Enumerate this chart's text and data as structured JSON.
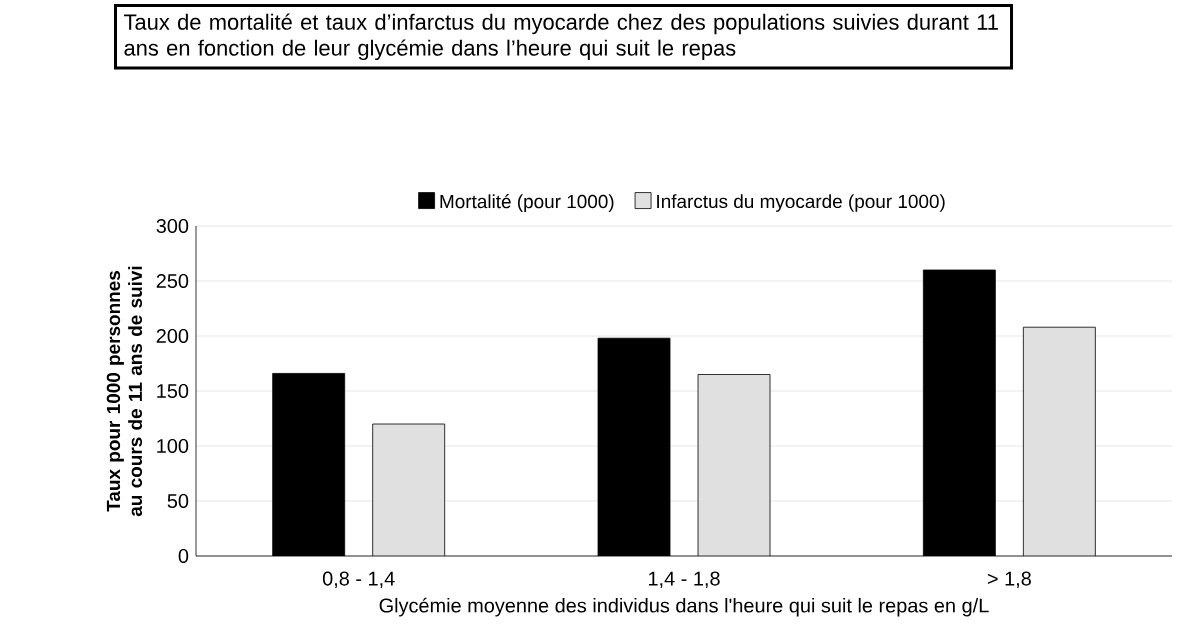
{
  "chart_data": {
    "type": "bar",
    "title": "Taux de mortalité et taux d’infarctus du myocarde chez des populations suivies durant 11 ans en fonction de leur glycémie dans l’heure qui suit le repas",
    "xlabel": "Glycémie moyenne des individus dans l'heure qui suit le repas en g/L",
    "ylabel": "Taux pour 1000 personnes au cours de 11 ans de suivi",
    "categories": [
      "0,8 - 1,4",
      "1,4 - 1,8",
      "> 1,8"
    ],
    "series": [
      {
        "name": "Mortalité (pour 1000)",
        "color": "#000000",
        "values": [
          166,
          198,
          260
        ]
      },
      {
        "name": "Infarctus du myocarde (pour 1000)",
        "color": "#e0e0e0",
        "values": [
          120,
          165,
          208
        ]
      }
    ],
    "ylim": [
      0,
      300
    ],
    "yticks": [
      0,
      50,
      100,
      150,
      200,
      250,
      300
    ],
    "grid": "y",
    "legend": "top"
  }
}
